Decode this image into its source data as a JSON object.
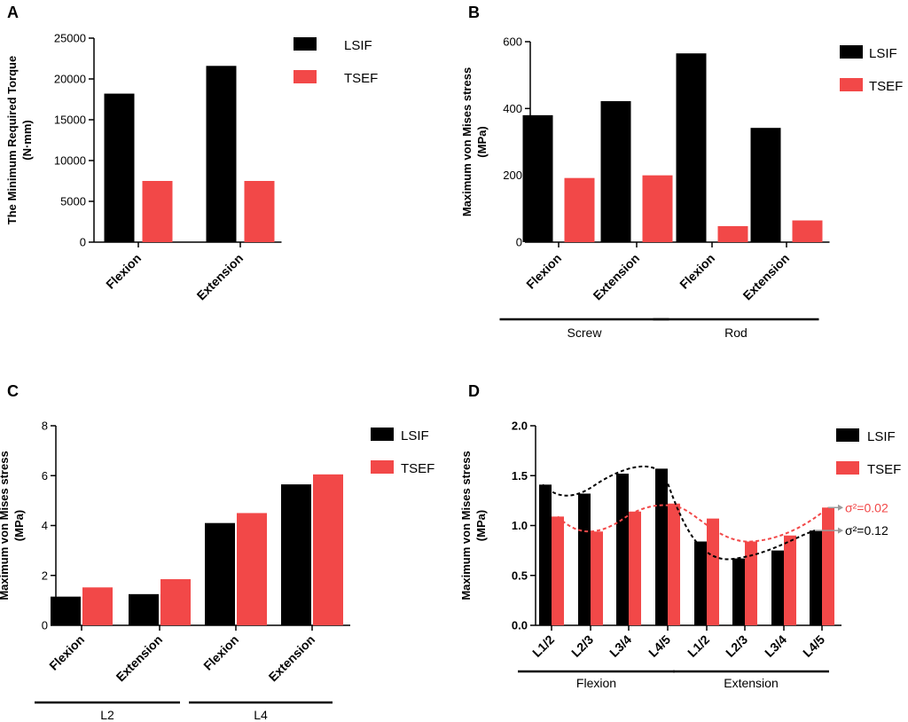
{
  "colors": {
    "lsif": "#000000",
    "tsef": "#f24848",
    "arrow": "#9a9a9a"
  },
  "chart_data": [
    {
      "panel": "A",
      "type": "bar",
      "ylabel_lines": [
        "The Minimum Required Torque",
        "(N·mm)"
      ],
      "ylim": [
        0,
        25000
      ],
      "yticks": [
        0,
        5000,
        10000,
        15000,
        20000,
        25000
      ],
      "categories": [
        "Flexion",
        "Extension"
      ],
      "series": [
        {
          "name": "LSIF",
          "values": [
            18200,
            21600
          ]
        },
        {
          "name": "TSEF",
          "values": [
            7500,
            7500
          ]
        }
      ],
      "groups": [],
      "legend": "top-right"
    },
    {
      "panel": "B",
      "type": "bar",
      "ylabel_lines": [
        "Maximum von Mises stress",
        "(MPa)"
      ],
      "ylim": [
        0,
        600
      ],
      "yticks": [
        0,
        200,
        400,
        600
      ],
      "categories": [
        "Flexion",
        "Extension",
        "Flexion",
        "Extension"
      ],
      "series": [
        {
          "name": "LSIF",
          "values": [
            380,
            422,
            565,
            342
          ]
        },
        {
          "name": "TSEF",
          "values": [
            192,
            200,
            48,
            65
          ]
        }
      ],
      "groups": [
        {
          "label": "Screw",
          "span": [
            0,
            1
          ]
        },
        {
          "label": "Rod",
          "span": [
            2,
            3
          ]
        }
      ],
      "legend": "top-right"
    },
    {
      "panel": "C",
      "type": "bar",
      "ylabel_lines": [
        "Maximum von Mises stress",
        "(MPa)"
      ],
      "ylim": [
        0,
        8
      ],
      "yticks": [
        0,
        2,
        4,
        6,
        8
      ],
      "categories": [
        "Flexion",
        "Extension",
        "Flexion",
        "Extension"
      ],
      "series": [
        {
          "name": "LSIF",
          "values": [
            1.15,
            1.25,
            4.1,
            5.65
          ]
        },
        {
          "name": "TSEF",
          "values": [
            1.52,
            1.85,
            4.5,
            6.05
          ]
        }
      ],
      "groups": [
        {
          "label": "L2",
          "span": [
            0,
            1
          ]
        },
        {
          "label": "L4",
          "span": [
            2,
            3
          ]
        }
      ],
      "legend": "top-right"
    },
    {
      "panel": "D",
      "type": "bar",
      "ylabel_lines": [
        "Maximum von Mises stress",
        "(MPa)"
      ],
      "ylim": [
        0,
        2.0
      ],
      "yticks": [
        "0.0",
        "0.5",
        "1.0",
        "1.5",
        "2.0"
      ],
      "categories": [
        "L1/2",
        "L2/3",
        "L3/4",
        "L4/5",
        "L1/2",
        "L2/3",
        "L3/4",
        "L4/5"
      ],
      "series": [
        {
          "name": "LSIF",
          "values": [
            1.41,
            1.32,
            1.52,
            1.57,
            0.84,
            0.67,
            0.75,
            0.95
          ]
        },
        {
          "name": "TSEF",
          "values": [
            1.09,
            0.94,
            1.14,
            1.22,
            1.07,
            0.84,
            0.9,
            1.18
          ]
        }
      ],
      "groups": [
        {
          "label": "Flexion",
          "span": [
            0,
            3
          ]
        },
        {
          "label": "Extension",
          "span": [
            4,
            7
          ]
        }
      ],
      "annotations": [
        {
          "text": "σ²=0.02",
          "series": "TSEF",
          "at_value": 1.18
        },
        {
          "text": "σ²=0.12",
          "series": "LSIF",
          "at_value": 0.95
        }
      ],
      "legend": "top-right"
    }
  ]
}
